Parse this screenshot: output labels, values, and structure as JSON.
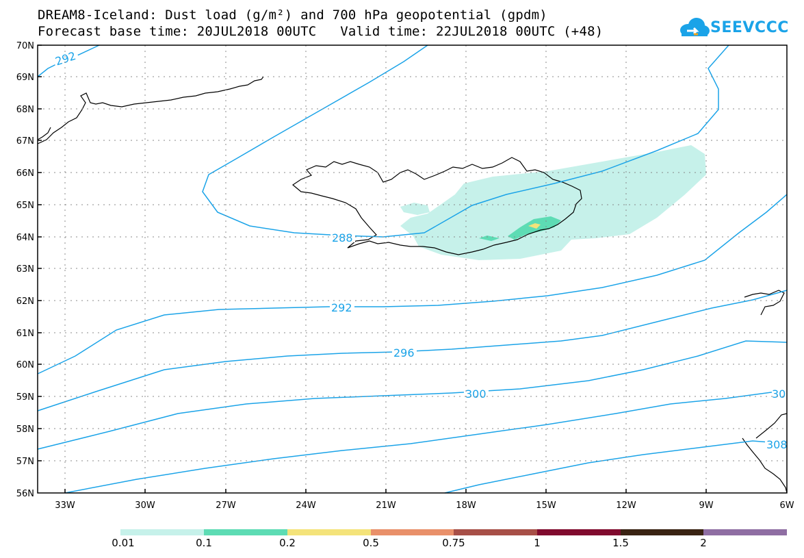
{
  "header": {
    "title_line1": "DREAM8-Iceland: Dust load (g/m²) and 700 hPa geopotential (gpdm)",
    "title_line2": "Forecast base time: 20JUL2018 00UTC   Valid time: 22JUL2018 00UTC (+48)"
  },
  "logo": {
    "text": "SEEVCCC",
    "color": "#1aa3e8"
  },
  "axes": {
    "lat_labels": [
      "70N",
      "69N",
      "68N",
      "67N",
      "66N",
      "65N",
      "64N",
      "63N",
      "62N",
      "61N",
      "60N",
      "59N",
      "58N",
      "57N",
      "56N"
    ],
    "lon_labels": [
      "33W",
      "30W",
      "27W",
      "24W",
      "21W",
      "18W",
      "15W",
      "12W",
      "9W",
      "6W"
    ]
  },
  "contours": {
    "color": "#1aa3e8",
    "labels": [
      "292",
      "288",
      "292",
      "296",
      "300",
      "30",
      "308"
    ]
  },
  "colorbar": {
    "colors": [
      "#c6f1ea",
      "#5ddcb4",
      "#f4e37a",
      "#e9906a",
      "#a74f47",
      "#800a2e",
      "#3a2313",
      "#8f6ea3"
    ],
    "labels": [
      "0.01",
      "0.1",
      "0.2",
      "0.5",
      "0.75",
      "1",
      "1.5",
      "2"
    ]
  }
}
